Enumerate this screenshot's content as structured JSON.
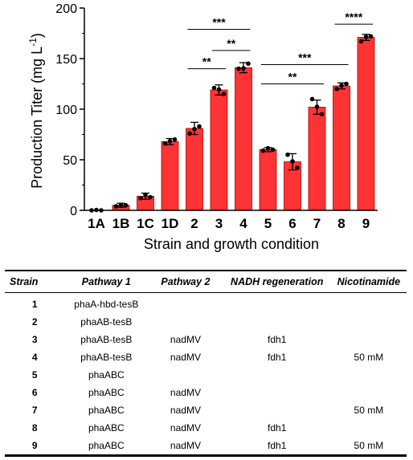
{
  "chart_data": {
    "type": "bar",
    "categories": [
      "1A",
      "1B",
      "1C",
      "1D",
      "2",
      "3",
      "4",
      "5",
      "6",
      "7",
      "8",
      "9"
    ],
    "values": [
      0,
      5,
      14,
      68,
      81,
      119,
      141,
      60,
      48,
      102,
      123,
      171
    ],
    "errors": [
      1,
      2,
      3,
      3,
      6,
      5,
      5,
      2,
      8,
      7,
      3,
      3
    ],
    "points": [
      [
        0,
        0,
        0
      ],
      [
        4,
        5,
        5
      ],
      [
        12,
        13,
        15
      ],
      [
        66,
        70,
        68
      ],
      [
        76,
        83,
        80
      ],
      [
        121,
        115,
        119
      ],
      [
        140,
        145,
        140
      ],
      [
        59,
        60,
        61
      ],
      [
        55,
        42,
        48
      ],
      [
        110,
        95,
        102
      ],
      [
        120,
        125,
        123
      ],
      [
        167,
        172,
        171
      ]
    ],
    "xlabel": "Strain and growth condition",
    "ylabel": "Production Titer (mg L",
    "ylabel_superscript": "-1",
    "ylabel_close": ")",
    "ylim": [
      0,
      200
    ],
    "yticks": [
      0,
      50,
      100,
      150,
      200
    ],
    "bar_color": "#ff3333",
    "bar_edge_color": "#b00000",
    "grid": false,
    "significance": [
      {
        "from": "2",
        "to": "4",
        "label": "***",
        "y": 179
      },
      {
        "from": "3",
        "to": "4",
        "label": "**",
        "y": 158
      },
      {
        "from": "2",
        "to": "3",
        "label": "**",
        "y": 140
      },
      {
        "from": "5",
        "to": "8",
        "label": "***",
        "y": 144
      },
      {
        "from": "5",
        "to": "7",
        "label": "**",
        "y": 125
      },
      {
        "from": "8",
        "to": "9",
        "label": "****",
        "y": 184
      }
    ]
  },
  "table": {
    "headers": [
      "Strain",
      "Pathway 1",
      "Pathway 2",
      "NADH regeneration",
      "Nicotinamide"
    ],
    "rows": [
      {
        "strain": "1",
        "pathway1": "phaA-hbd-tesB",
        "pathway2": "",
        "nadh": "",
        "nicotinamide": ""
      },
      {
        "strain": "2",
        "pathway1": "phaAB-tesB",
        "pathway2": "",
        "nadh": "",
        "nicotinamide": ""
      },
      {
        "strain": "3",
        "pathway1": "phaAB-tesB",
        "pathway2": "nadMV",
        "nadh": "fdh1",
        "nicotinamide": ""
      },
      {
        "strain": "4",
        "pathway1": "phaAB-tesB",
        "pathway2": "nadMV",
        "nadh": "fdh1",
        "nicotinamide": "50 mM"
      },
      {
        "strain": "5",
        "pathway1": "phaABC",
        "pathway2": "",
        "nadh": "",
        "nicotinamide": ""
      },
      {
        "strain": "6",
        "pathway1": "phaABC",
        "pathway2": "nadMV",
        "nadh": "",
        "nicotinamide": ""
      },
      {
        "strain": "7",
        "pathway1": "phaABC",
        "pathway2": "nadMV",
        "nadh": "",
        "nicotinamide": "50 mM"
      },
      {
        "strain": "8",
        "pathway1": "phaABC",
        "pathway2": "nadMV",
        "nadh": "fdh1",
        "nicotinamide": ""
      },
      {
        "strain": "9",
        "pathway1": "phaABC",
        "pathway2": "nadMV",
        "nadh": "fdh1",
        "nicotinamide": "50 mM"
      }
    ]
  }
}
